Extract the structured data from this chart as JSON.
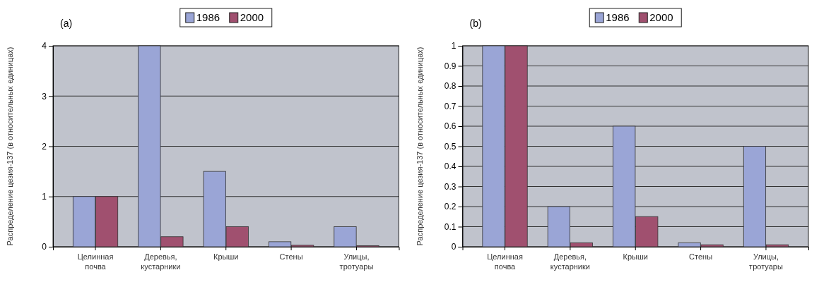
{
  "chart_data": [
    {
      "type": "bar",
      "title": "(a)",
      "ylabel": "Распределение цезия-137 (в относительных единицах)",
      "categories": [
        "Целинная почва",
        "Деревья, кустарники",
        "Крыши",
        "Стены",
        "Улицы, тротуары"
      ],
      "series": [
        {
          "name": "1986",
          "color": "#9aa5d6",
          "values": [
            1,
            4,
            1.5,
            0.1,
            0.4
          ]
        },
        {
          "name": "2000",
          "color": "#a0506f",
          "values": [
            1,
            0.2,
            0.4,
            0.03,
            0.02
          ]
        }
      ],
      "ylim": [
        0,
        4
      ],
      "yticks": [
        0,
        1,
        2,
        3,
        4
      ],
      "grid": "y",
      "legend": "top"
    },
    {
      "type": "bar",
      "title": "(b)",
      "ylabel": "Распределение цезия-137 (в относительных единицах)",
      "categories": [
        "Целинная почва",
        "Деревья, кустарники",
        "Крыши",
        "Стены",
        "Улицы, тротуары"
      ],
      "series": [
        {
          "name": "1986",
          "color": "#9aa5d6",
          "values": [
            1,
            0.2,
            0.6,
            0.02,
            0.5
          ]
        },
        {
          "name": "2000",
          "color": "#a0506f",
          "values": [
            1,
            0.02,
            0.15,
            0.01,
            0.01
          ]
        }
      ],
      "ylim": [
        0,
        1
      ],
      "yticks": [
        0,
        0.1,
        0.2,
        0.3,
        0.4,
        0.5,
        0.6,
        0.7,
        0.8,
        0.9,
        1
      ],
      "grid": "y",
      "legend": "top"
    }
  ]
}
